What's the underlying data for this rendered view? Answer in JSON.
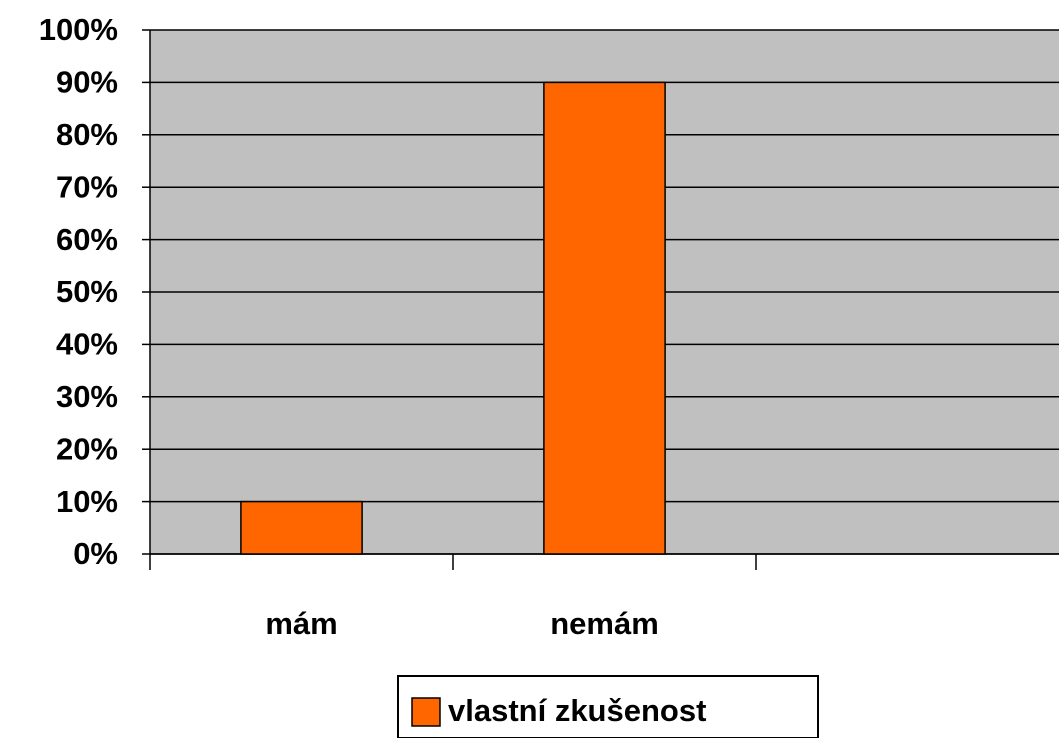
{
  "chart_data": {
    "type": "bar",
    "categories": [
      "mám",
      "nemám",
      null
    ],
    "series": [
      {
        "name": "vlastní zkušenost",
        "color": "#ff6600",
        "values": [
          10,
          90,
          null
        ]
      }
    ],
    "ylim": [
      0,
      100
    ],
    "yticks": [
      {
        "value": 0,
        "label": "0%"
      },
      {
        "value": 10,
        "label": "10%"
      },
      {
        "value": 20,
        "label": "20%"
      },
      {
        "value": 30,
        "label": "30%"
      },
      {
        "value": 40,
        "label": "40%"
      },
      {
        "value": 50,
        "label": "50%"
      },
      {
        "value": 60,
        "label": "60%"
      },
      {
        "value": 70,
        "label": "70%"
      },
      {
        "value": 80,
        "label": "80%"
      },
      {
        "value": 90,
        "label": "90%"
      },
      {
        "value": 100,
        "label": "100%"
      }
    ],
    "grid": true,
    "plot_background": "#c0c0c0",
    "legend": "bottom"
  }
}
